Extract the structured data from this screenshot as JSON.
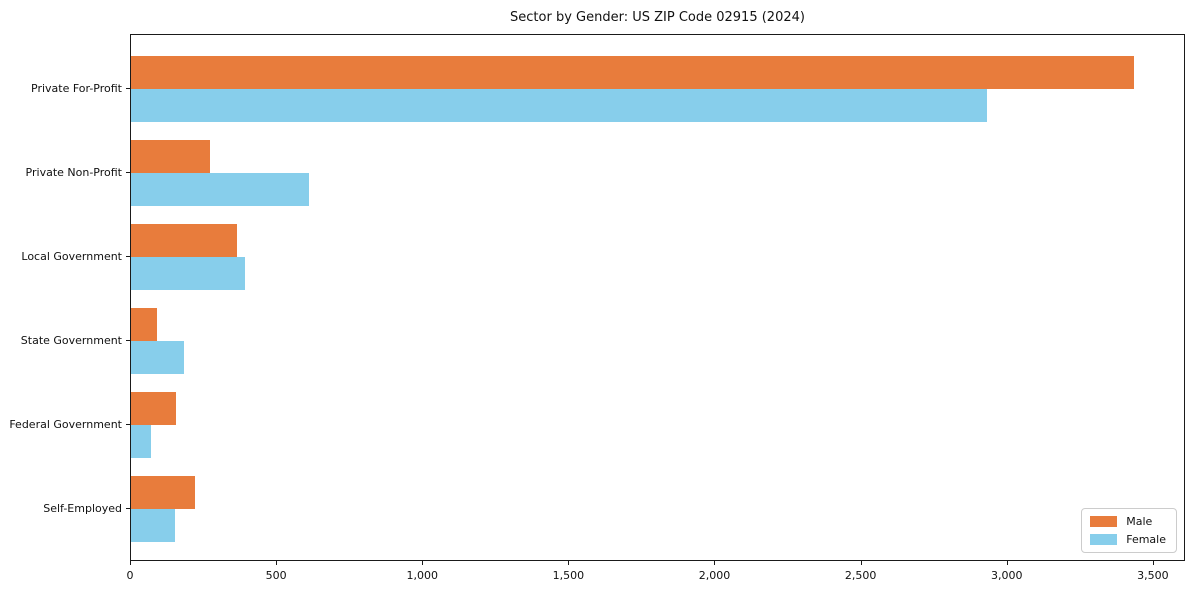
{
  "chart_data": {
    "type": "bar",
    "orientation": "horizontal",
    "title": "Sector by Gender: US ZIP Code 02915 (2024)",
    "categories": [
      "Private For-Profit",
      "Private Non-Profit",
      "Local Government",
      "State Government",
      "Federal Government",
      "Self-Employed"
    ],
    "series": [
      {
        "name": "Male",
        "color": "#E87C3C",
        "values": [
          3440,
          270,
          365,
          90,
          155,
          220
        ]
      },
      {
        "name": "Female",
        "color": "#87CEEB",
        "values": [
          2935,
          610,
          390,
          180,
          70,
          150
        ]
      }
    ],
    "xlabel": "",
    "ylabel": "",
    "xlim": [
      0,
      3610
    ],
    "xticks": [
      0,
      500,
      1000,
      1500,
      2000,
      2500,
      3000,
      3500
    ],
    "xtick_labels": [
      "0",
      "500",
      "1,000",
      "1,500",
      "2,000",
      "2,500",
      "3,000",
      "3,500"
    ],
    "grid": false,
    "legend_position": "lower right",
    "colors": {
      "frame": "#1a1a1a",
      "background": "#ffffff",
      "legend_border": "#cccccc"
    }
  }
}
